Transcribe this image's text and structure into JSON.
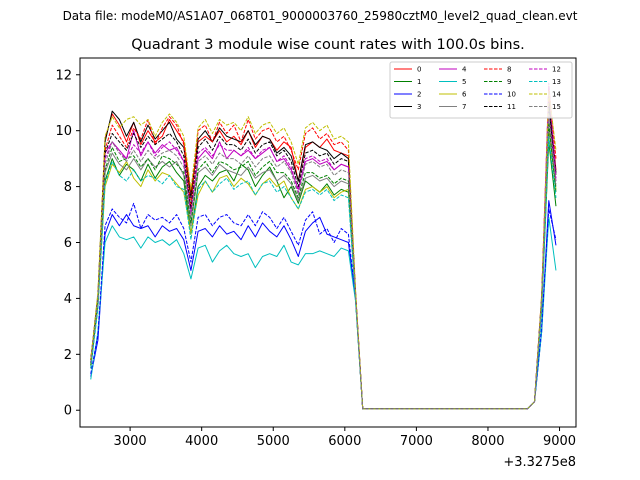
{
  "chart_data": {
    "type": "line",
    "suptitle": "Data file: modeM0/AS1A07_068T01_9000003760_25980cztM0_level2_quad_clean.evt",
    "title": "Quadrant 3 module wise count rates with 100.0s bins.",
    "xlabel": "",
    "ylabel": "",
    "x_offset_label": "+3.3275e8",
    "xlim": [
      2300,
      9230
    ],
    "ylim": [
      -0.6,
      12.6
    ],
    "xticks": [
      3000,
      4000,
      5000,
      6000,
      7000,
      8000,
      9000
    ],
    "yticks": [
      0,
      2,
      4,
      6,
      8,
      10,
      12
    ],
    "grid": false,
    "legend_position": "top-right",
    "legend_columns": 4,
    "x": [
      2450,
      2550,
      2650,
      2750,
      2850,
      2950,
      3050,
      3150,
      3250,
      3350,
      3450,
      3550,
      3650,
      3750,
      3850,
      3950,
      4050,
      4150,
      4250,
      4350,
      4450,
      4550,
      4650,
      4750,
      4850,
      4950,
      5050,
      5150,
      5250,
      5350,
      5450,
      5550,
      5650,
      5750,
      5850,
      5950,
      6050,
      6150,
      6250,
      6350,
      6450,
      6550,
      6650,
      6750,
      6850,
      6950,
      7050,
      7150,
      7250,
      7350,
      7450,
      7550,
      7650,
      7750,
      7850,
      7950,
      8050,
      8150,
      8250,
      8350,
      8450,
      8550,
      8650,
      8750,
      8850,
      8950
    ],
    "series": [
      {
        "name": "0",
        "color": "#ff0000",
        "dash": "solid",
        "values": [
          1.8,
          4.0,
          9.7,
          10.6,
          10.2,
          9.6,
          10.3,
          9.5,
          10.0,
          9.6,
          9.8,
          10.4,
          10.0,
          9.6,
          7.8,
          9.6,
          9.8,
          9.6,
          10.0,
          9.6,
          9.8,
          9.5,
          10.0,
          9.4,
          9.8,
          9.7,
          9.3,
          9.6,
          9.4,
          8.2,
          9.4,
          9.6,
          9.4,
          9.7,
          9.3,
          9.2,
          9.1,
          4.2,
          0.05,
          0.05,
          0.05,
          0.05,
          0.05,
          0.05,
          0.05,
          0.05,
          0.05,
          0.05,
          0.05,
          0.05,
          0.05,
          0.05,
          0.05,
          0.05,
          0.05,
          0.05,
          0.05,
          0.05,
          0.05,
          0.05,
          0.05,
          0.05,
          0.3,
          4.0,
          11.2,
          8.6
        ]
      },
      {
        "name": "1",
        "color": "#008000",
        "dash": "solid",
        "values": [
          1.5,
          3.8,
          8.2,
          9.0,
          8.4,
          8.8,
          8.6,
          8.2,
          8.8,
          8.3,
          8.7,
          8.9,
          8.5,
          8.2,
          6.3,
          8.0,
          8.4,
          8.2,
          8.5,
          8.6,
          8.2,
          8.8,
          8.6,
          8.0,
          8.4,
          8.7,
          8.2,
          7.6,
          8.0,
          7.4,
          8.2,
          8.0,
          7.8,
          8.1,
          7.7,
          7.9,
          7.8,
          4.0,
          0.05,
          0.05,
          0.05,
          0.05,
          0.05,
          0.05,
          0.05,
          0.05,
          0.05,
          0.05,
          0.05,
          0.05,
          0.05,
          0.05,
          0.05,
          0.05,
          0.05,
          0.05,
          0.05,
          0.05,
          0.05,
          0.05,
          0.05,
          0.05,
          0.3,
          3.6,
          9.6,
          7.3
        ]
      },
      {
        "name": "2",
        "color": "#0000ff",
        "dash": "solid",
        "values": [
          1.2,
          2.5,
          6.3,
          7.0,
          6.6,
          7.0,
          6.6,
          6.5,
          6.6,
          6.2,
          6.6,
          6.4,
          6.5,
          6.1,
          5.0,
          6.4,
          6.5,
          6.2,
          6.6,
          6.3,
          6.4,
          6.1,
          6.6,
          6.2,
          6.7,
          6.4,
          6.2,
          6.6,
          6.1,
          5.5,
          6.4,
          6.7,
          6.9,
          6.3,
          6.2,
          6.1,
          6.0,
          4.0,
          0.05,
          0.05,
          0.05,
          0.05,
          0.05,
          0.05,
          0.05,
          0.05,
          0.05,
          0.05,
          0.05,
          0.05,
          0.05,
          0.05,
          0.05,
          0.05,
          0.05,
          0.05,
          0.05,
          0.05,
          0.05,
          0.05,
          0.05,
          0.05,
          0.3,
          2.8,
          7.5,
          5.9
        ]
      },
      {
        "name": "3",
        "color": "#000000",
        "dash": "solid",
        "values": [
          1.8,
          4.1,
          9.6,
          10.7,
          10.4,
          9.8,
          10.3,
          9.6,
          10.2,
          9.7,
          10.0,
          10.3,
          9.7,
          9.4,
          7.6,
          9.7,
          10.0,
          9.6,
          10.1,
          9.8,
          9.7,
          9.6,
          10.0,
          9.5,
          9.8,
          9.7,
          9.2,
          9.4,
          9.1,
          8.2,
          9.5,
          9.6,
          9.4,
          9.3,
          9.0,
          9.2,
          9.0,
          4.2,
          0.05,
          0.05,
          0.05,
          0.05,
          0.05,
          0.05,
          0.05,
          0.05,
          0.05,
          0.05,
          0.05,
          0.05,
          0.05,
          0.05,
          0.05,
          0.05,
          0.05,
          0.05,
          0.05,
          0.05,
          0.05,
          0.05,
          0.05,
          0.05,
          0.3,
          4.0,
          11.0,
          8.5
        ]
      },
      {
        "name": "4",
        "color": "#bf00bf",
        "dash": "solid",
        "values": [
          1.7,
          3.9,
          9.2,
          9.6,
          9.3,
          9.0,
          10.0,
          9.1,
          9.6,
          9.2,
          9.5,
          9.3,
          9.4,
          8.9,
          7.0,
          9.0,
          9.3,
          9.0,
          9.6,
          9.0,
          9.3,
          9.1,
          9.3,
          9.0,
          9.2,
          9.4,
          8.9,
          9.0,
          8.6,
          7.9,
          8.9,
          9.0,
          8.8,
          8.9,
          8.6,
          8.8,
          8.7,
          4.1,
          0.05,
          0.05,
          0.05,
          0.05,
          0.05,
          0.05,
          0.05,
          0.05,
          0.05,
          0.05,
          0.05,
          0.05,
          0.05,
          0.05,
          0.05,
          0.05,
          0.05,
          0.05,
          0.05,
          0.05,
          0.05,
          0.05,
          0.05,
          0.05,
          0.3,
          3.9,
          10.7,
          8.2
        ]
      },
      {
        "name": "5",
        "color": "#00bfbf",
        "dash": "solid",
        "values": [
          1.1,
          2.8,
          6.0,
          6.6,
          6.2,
          6.1,
          6.2,
          5.8,
          6.2,
          6.0,
          6.1,
          5.9,
          6.1,
          5.6,
          4.7,
          5.8,
          5.9,
          5.3,
          5.7,
          5.9,
          5.6,
          5.5,
          5.6,
          5.1,
          5.5,
          5.6,
          5.5,
          5.9,
          5.3,
          5.2,
          5.6,
          5.6,
          5.7,
          5.6,
          5.5,
          5.8,
          5.7,
          3.9,
          0.05,
          0.05,
          0.05,
          0.05,
          0.05,
          0.05,
          0.05,
          0.05,
          0.05,
          0.05,
          0.05,
          0.05,
          0.05,
          0.05,
          0.05,
          0.05,
          0.05,
          0.05,
          0.05,
          0.05,
          0.05,
          0.05,
          0.05,
          0.05,
          0.3,
          2.8,
          6.9,
          5.0
        ]
      },
      {
        "name": "6",
        "color": "#bfbf00",
        "dash": "solid",
        "values": [
          1.6,
          3.7,
          8.0,
          8.8,
          8.5,
          8.9,
          8.3,
          8.0,
          8.6,
          8.2,
          8.5,
          8.4,
          8.1,
          7.8,
          6.3,
          7.7,
          8.2,
          7.8,
          8.3,
          8.4,
          8.0,
          8.3,
          8.1,
          7.7,
          8.1,
          8.3,
          8.0,
          8.2,
          7.6,
          7.2,
          7.9,
          8.0,
          7.8,
          8.0,
          7.6,
          7.8,
          7.9,
          4.0,
          0.05,
          0.05,
          0.05,
          0.05,
          0.05,
          0.05,
          0.05,
          0.05,
          0.05,
          0.05,
          0.05,
          0.05,
          0.05,
          0.05,
          0.05,
          0.05,
          0.05,
          0.05,
          0.05,
          0.05,
          0.05,
          0.05,
          0.05,
          0.05,
          0.3,
          3.7,
          10.0,
          7.9
        ]
      },
      {
        "name": "7",
        "color": "#808080",
        "dash": "solid",
        "values": [
          1.7,
          3.8,
          8.5,
          9.2,
          8.8,
          8.6,
          9.0,
          8.6,
          9.0,
          8.7,
          8.9,
          8.7,
          8.9,
          8.4,
          6.6,
          8.5,
          8.7,
          8.4,
          8.8,
          8.6,
          8.5,
          8.4,
          8.7,
          8.3,
          8.5,
          8.6,
          8.2,
          8.4,
          8.1,
          7.5,
          8.3,
          8.4,
          8.2,
          8.3,
          8.0,
          8.2,
          8.1,
          4.0,
          0.05,
          0.05,
          0.05,
          0.05,
          0.05,
          0.05,
          0.05,
          0.05,
          0.05,
          0.05,
          0.05,
          0.05,
          0.05,
          0.05,
          0.05,
          0.05,
          0.05,
          0.05,
          0.05,
          0.05,
          0.05,
          0.05,
          0.05,
          0.05,
          0.3,
          3.8,
          10.2,
          8.0
        ]
      },
      {
        "name": "8",
        "color": "#ff0000",
        "dash": "dashed",
        "values": [
          1.8,
          4.1,
          9.3,
          10.2,
          9.8,
          9.4,
          10.1,
          9.7,
          10.4,
          9.5,
          10.1,
          10.5,
          10.2,
          9.5,
          7.3,
          10.0,
          10.2,
          9.6,
          10.3,
          9.9,
          10.2,
          9.6,
          10.4,
          9.7,
          10.0,
          10.1,
          9.6,
          9.8,
          9.3,
          8.6,
          9.9,
          10.1,
          9.7,
          9.9,
          9.5,
          9.6,
          9.3,
          4.2,
          0.05,
          0.05,
          0.05,
          0.05,
          0.05,
          0.05,
          0.05,
          0.05,
          0.05,
          0.05,
          0.05,
          0.05,
          0.05,
          0.05,
          0.05,
          0.05,
          0.05,
          0.05,
          0.05,
          0.05,
          0.05,
          0.05,
          0.05,
          0.05,
          0.3,
          4.1,
          11.6,
          9.0
        ]
      },
      {
        "name": "9",
        "color": "#008000",
        "dash": "dashed",
        "values": [
          1.6,
          3.9,
          8.6,
          9.4,
          8.9,
          9.0,
          9.1,
          8.7,
          9.0,
          8.6,
          9.1,
          9.0,
          8.8,
          8.5,
          6.7,
          8.6,
          8.9,
          8.5,
          8.9,
          8.8,
          8.6,
          8.7,
          8.9,
          8.4,
          8.7,
          8.9,
          8.5,
          8.5,
          8.2,
          7.6,
          8.5,
          8.5,
          8.3,
          8.4,
          8.1,
          8.3,
          8.2,
          4.0,
          0.05,
          0.05,
          0.05,
          0.05,
          0.05,
          0.05,
          0.05,
          0.05,
          0.05,
          0.05,
          0.05,
          0.05,
          0.05,
          0.05,
          0.05,
          0.05,
          0.05,
          0.05,
          0.05,
          0.05,
          0.05,
          0.05,
          0.05,
          0.05,
          0.3,
          3.8,
          10.3,
          7.8
        ]
      },
      {
        "name": "10",
        "color": "#0000ff",
        "dash": "dashed",
        "values": [
          1.3,
          2.7,
          6.6,
          7.2,
          6.9,
          6.7,
          7.4,
          6.5,
          7.0,
          6.8,
          6.9,
          6.7,
          7.0,
          6.5,
          5.3,
          6.9,
          7.0,
          6.6,
          6.9,
          7.0,
          6.7,
          6.6,
          7.0,
          6.6,
          7.1,
          6.9,
          6.5,
          6.9,
          6.4,
          5.9,
          6.8,
          7.1,
          6.3,
          6.5,
          6.0,
          6.5,
          6.3,
          4.0,
          0.05,
          0.05,
          0.05,
          0.05,
          0.05,
          0.05,
          0.05,
          0.05,
          0.05,
          0.05,
          0.05,
          0.05,
          0.05,
          0.05,
          0.05,
          0.05,
          0.05,
          0.05,
          0.05,
          0.05,
          0.05,
          0.05,
          0.05,
          0.05,
          0.3,
          3.0,
          7.2,
          6.1
        ]
      },
      {
        "name": "11",
        "color": "#000000",
        "dash": "dashed",
        "values": [
          1.7,
          4.0,
          9.2,
          9.9,
          9.6,
          9.3,
          9.9,
          9.4,
          9.8,
          9.5,
          9.7,
          9.9,
          9.6,
          9.1,
          7.2,
          9.4,
          9.7,
          9.3,
          9.8,
          9.5,
          9.5,
          9.3,
          9.7,
          9.2,
          9.5,
          9.6,
          9.1,
          9.3,
          8.9,
          8.0,
          9.2,
          9.3,
          9.1,
          9.2,
          8.8,
          9.0,
          8.9,
          4.1,
          0.05,
          0.05,
          0.05,
          0.05,
          0.05,
          0.05,
          0.05,
          0.05,
          0.05,
          0.05,
          0.05,
          0.05,
          0.05,
          0.05,
          0.05,
          0.05,
          0.05,
          0.05,
          0.05,
          0.05,
          0.05,
          0.05,
          0.05,
          0.05,
          0.3,
          4.0,
          10.9,
          8.4
        ]
      },
      {
        "name": "12",
        "color": "#bf00bf",
        "dash": "dashed",
        "values": [
          1.7,
          3.9,
          9.0,
          9.6,
          9.2,
          9.0,
          9.5,
          9.2,
          9.6,
          9.1,
          9.4,
          9.6,
          9.3,
          8.9,
          7.0,
          9.2,
          9.4,
          9.1,
          9.5,
          9.3,
          9.3,
          9.1,
          9.4,
          9.0,
          9.3,
          9.4,
          8.9,
          9.1,
          8.7,
          7.8,
          9.0,
          9.1,
          8.9,
          9.0,
          8.6,
          8.8,
          8.7,
          4.1,
          0.05,
          0.05,
          0.05,
          0.05,
          0.05,
          0.05,
          0.05,
          0.05,
          0.05,
          0.05,
          0.05,
          0.05,
          0.05,
          0.05,
          0.05,
          0.05,
          0.05,
          0.05,
          0.05,
          0.05,
          0.05,
          0.05,
          0.05,
          0.05,
          0.3,
          3.9,
          11.7,
          8.3
        ]
      },
      {
        "name": "13",
        "color": "#00bfbf",
        "dash": "dashed",
        "values": [
          1.5,
          3.6,
          8.1,
          8.9,
          8.4,
          8.2,
          8.6,
          8.2,
          8.4,
          8.3,
          8.1,
          8.4,
          8.0,
          7.9,
          6.1,
          7.9,
          8.2,
          7.8,
          8.1,
          8.3,
          7.9,
          8.1,
          8.2,
          7.7,
          8.1,
          8.2,
          7.8,
          8.0,
          7.6,
          7.2,
          7.8,
          7.9,
          7.7,
          7.9,
          7.5,
          7.7,
          7.6,
          3.9,
          0.05,
          0.05,
          0.05,
          0.05,
          0.05,
          0.05,
          0.05,
          0.05,
          0.05,
          0.05,
          0.05,
          0.05,
          0.05,
          0.05,
          0.05,
          0.05,
          0.05,
          0.05,
          0.05,
          0.05,
          0.05,
          0.05,
          0.05,
          0.05,
          0.3,
          3.5,
          9.8,
          7.6
        ]
      },
      {
        "name": "14",
        "color": "#bfbf00",
        "dash": "dashed",
        "values": [
          1.8,
          4.2,
          9.8,
          10.5,
          10.1,
          10.4,
          10.5,
          10.2,
          10.4,
          9.8,
          10.3,
          10.6,
          10.3,
          9.8,
          7.9,
          10.1,
          10.4,
          9.9,
          10.4,
          10.2,
          10.3,
          10.0,
          10.5,
          9.9,
          10.2,
          10.3,
          9.9,
          10.1,
          9.6,
          8.8,
          10.1,
          10.3,
          10.0,
          10.2,
          9.7,
          9.8,
          9.6,
          4.3,
          0.05,
          0.05,
          0.05,
          0.05,
          0.05,
          0.05,
          0.05,
          0.05,
          0.05,
          0.05,
          0.05,
          0.05,
          0.05,
          0.05,
          0.05,
          0.05,
          0.05,
          0.05,
          0.05,
          0.05,
          0.05,
          0.05,
          0.05,
          0.05,
          0.3,
          4.1,
          11.4,
          9.3
        ]
      },
      {
        "name": "15",
        "color": "#808080",
        "dash": "dashed",
        "values": [
          1.7,
          3.9,
          8.8,
          9.6,
          9.2,
          8.9,
          9.3,
          8.9,
          9.3,
          9.0,
          9.2,
          9.3,
          9.1,
          8.7,
          6.9,
          8.9,
          9.1,
          8.8,
          9.2,
          9.0,
          9.0,
          8.8,
          9.1,
          8.7,
          9.0,
          9.1,
          8.7,
          8.9,
          8.5,
          7.7,
          8.8,
          8.9,
          8.7,
          8.8,
          8.4,
          8.6,
          8.5,
          4.0,
          0.05,
          0.05,
          0.05,
          0.05,
          0.05,
          0.05,
          0.05,
          0.05,
          0.05,
          0.05,
          0.05,
          0.05,
          0.05,
          0.05,
          0.05,
          0.05,
          0.05,
          0.05,
          0.05,
          0.05,
          0.05,
          0.05,
          0.05,
          0.05,
          0.3,
          3.9,
          10.6,
          8.1
        ]
      }
    ]
  }
}
